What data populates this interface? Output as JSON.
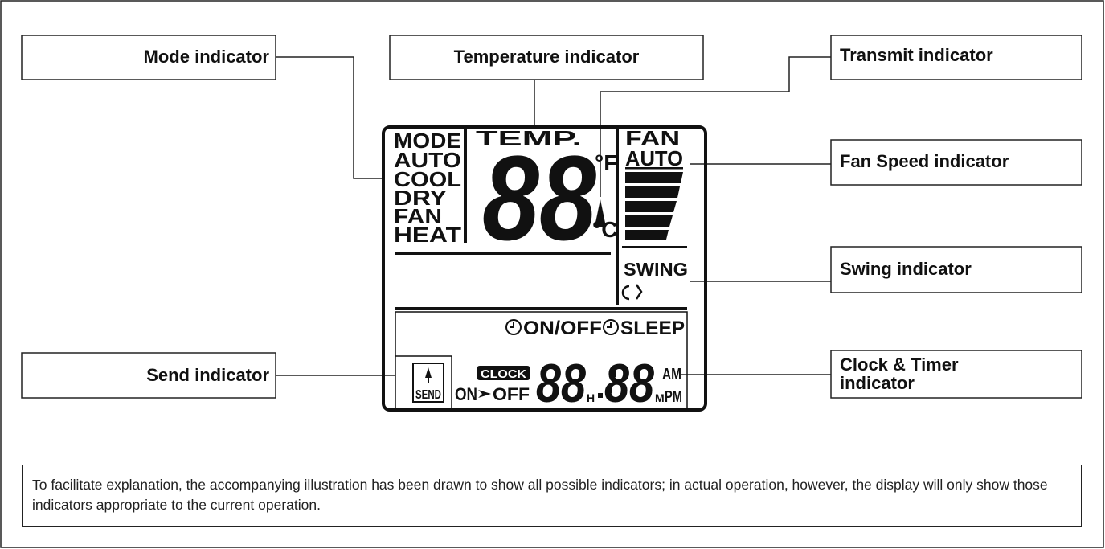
{
  "callouts": {
    "mode": "Mode indicator",
    "temperature": "Temperature indicator",
    "transmit": "Transmit indicator",
    "fan_speed": "Fan Speed indicator",
    "swing": "Swing indicator",
    "send": "Send indicator",
    "clock_timer": [
      "Clock & Timer",
      "indicator"
    ]
  },
  "display": {
    "mode_header": "MODE",
    "modes": [
      "AUTO",
      "COOL",
      "DRY",
      "FAN",
      "HEAT"
    ],
    "temp_header": "TEMP.",
    "temp_digits": "88",
    "fahrenheit": "°F",
    "celsius": "°C",
    "fan_header": "FAN",
    "fan_auto": "AUTO",
    "swing": "SWING",
    "timer_on_off": "ON/OFF",
    "sleep": "SLEEP",
    "send": "SEND",
    "on": "ON",
    "off": "OFF",
    "clock": "CLOCK",
    "hour_digits": "88",
    "hour_unit": "H",
    "minute_digits": "88",
    "minute_unit": "M",
    "am": "AM",
    "pm": "PM"
  },
  "note": "To facilitate explanation, the accompanying illustration has been drawn to show all possible indicators; in actual operation, however, the display will only show those indicators appropriate to the current operation."
}
